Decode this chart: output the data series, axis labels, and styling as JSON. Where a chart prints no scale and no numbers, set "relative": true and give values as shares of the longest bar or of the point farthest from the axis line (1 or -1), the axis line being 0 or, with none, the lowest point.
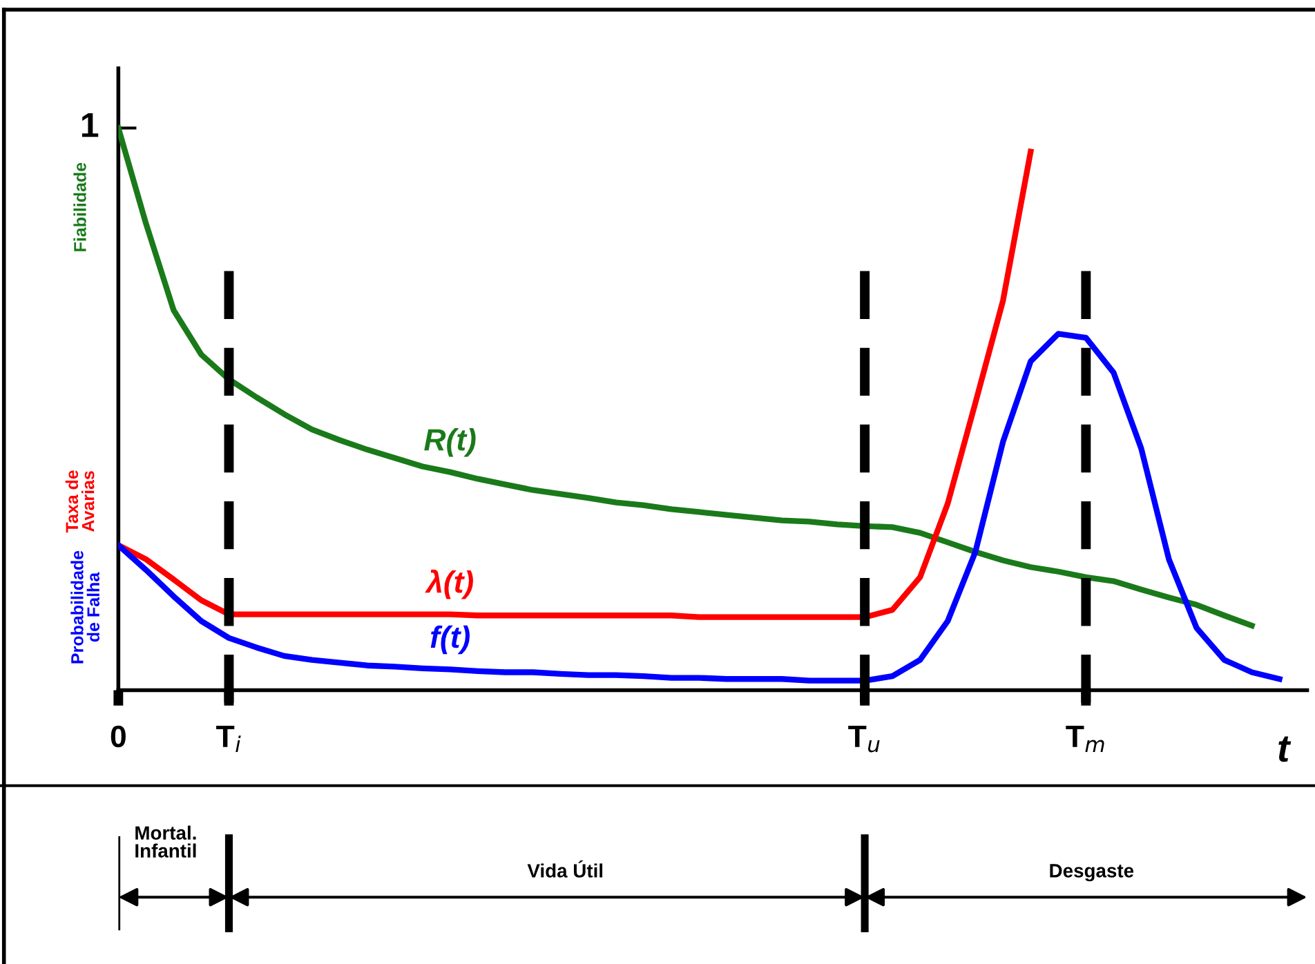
{
  "chart_data": {
    "type": "line",
    "relative": true,
    "xlabel": "t",
    "categories": [
      "0",
      null,
      null,
      null,
      "T$_{i}$",
      null,
      null,
      null,
      null,
      null,
      null,
      null,
      null,
      null,
      null,
      null,
      null,
      null,
      null,
      null,
      null,
      null,
      null,
      null,
      null,
      null,
      null,
      "T$_{u}$",
      null,
      null,
      null,
      null,
      null,
      null,
      null,
      "T$_{m}$",
      null,
      null,
      null,
      null,
      null,
      null,
      null,
      null
    ],
    "series": [
      {
        "name": "R(t)",
        "color": "#1a7a1a",
        "values": [
          1.0,
          0.83,
          0.676,
          0.597,
          0.553,
          0.521,
          0.491,
          0.464,
          0.445,
          0.428,
          0.413,
          0.398,
          0.388,
          0.376,
          0.366,
          0.356,
          0.349,
          0.342,
          0.334,
          0.329,
          0.322,
          0.317,
          0.312,
          0.307,
          0.302,
          0.3,
          0.295,
          0.292,
          0.29,
          0.28,
          0.263,
          0.246,
          0.231,
          0.219,
          0.211,
          0.201,
          0.194,
          0.179,
          0.165,
          0.152,
          0.133,
          0.115,
          null,
          null
        ]
      },
      {
        "name": "λ(t)",
        "color": "#ff0000",
        "values": [
          0.258,
          0.233,
          0.197,
          0.16,
          0.135,
          0.135,
          0.135,
          0.135,
          0.135,
          0.135,
          0.135,
          0.135,
          0.135,
          0.133,
          0.133,
          0.133,
          0.133,
          0.133,
          0.133,
          0.133,
          0.133,
          0.13,
          0.13,
          0.13,
          0.13,
          0.13,
          0.13,
          0.13,
          0.143,
          0.201,
          0.332,
          0.511,
          0.693,
          0.958,
          null,
          null,
          null,
          null,
          null,
          null,
          null,
          null,
          null,
          null
        ]
      },
      {
        "name": "f(t)",
        "color": "#0000ff",
        "values": [
          0.258,
          0.214,
          0.167,
          0.123,
          0.093,
          0.076,
          0.061,
          0.054,
          0.049,
          0.044,
          0.042,
          0.039,
          0.037,
          0.034,
          0.032,
          0.032,
          0.029,
          0.027,
          0.027,
          0.025,
          0.022,
          0.022,
          0.02,
          0.02,
          0.02,
          0.017,
          0.017,
          0.017,
          0.025,
          0.054,
          0.123,
          0.246,
          0.442,
          0.585,
          0.634,
          0.627,
          0.565,
          0.43,
          0.233,
          0.111,
          0.054,
          0.032,
          0.02,
          null
        ]
      }
    ],
    "annotations": [
      {
        "text": "1",
        "x": "0",
        "y": 1.0
      },
      "Fiabilidade",
      "Taxa de\nAvarias",
      "Probabilidade\nde Falha",
      "Mortal.\nInfantil",
      "Vida Útil",
      "Desgaste"
    ],
    "ref_lines": [
      {
        "axis": "x",
        "value": "T$_{i}$",
        "color": "#000000",
        "line_style": "dashed"
      },
      {
        "axis": "x",
        "value": "T$_{u}$",
        "color": "#000000",
        "line_style": "dashed"
      },
      {
        "axis": "x",
        "value": "T$_{m}$",
        "color": "#000000",
        "line_style": "dashed"
      }
    ],
    "grid": false,
    "legend": false,
    "marker": "none",
    "line_style": "solid"
  }
}
